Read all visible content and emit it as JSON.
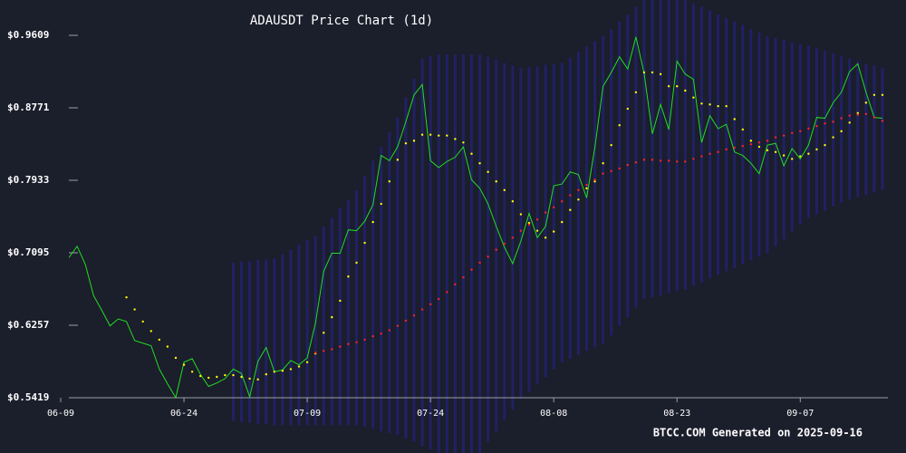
{
  "chart_data": {
    "type": "line",
    "title": "ADAUSDT Price Chart (1d)",
    "footer": "BTCC.COM Generated on 2025-09-16",
    "background": "#1b1e2b",
    "categories": [
      "06-09",
      null,
      null,
      null,
      null,
      null,
      null,
      null,
      null,
      null,
      null,
      null,
      null,
      null,
      null,
      "06-24",
      null,
      null,
      null,
      null,
      null,
      null,
      null,
      null,
      null,
      null,
      null,
      null,
      null,
      null,
      "07-09",
      null,
      null,
      null,
      null,
      null,
      null,
      null,
      null,
      null,
      null,
      null,
      null,
      null,
      null,
      "07-24",
      null,
      null,
      null,
      null,
      null,
      null,
      null,
      null,
      null,
      null,
      null,
      null,
      null,
      null,
      "08-08",
      null,
      null,
      null,
      null,
      null,
      null,
      null,
      null,
      null,
      null,
      null,
      null,
      null,
      null,
      "08-23",
      null,
      null,
      null,
      null,
      null,
      null,
      null,
      null,
      null,
      null,
      null,
      null,
      null,
      null,
      "09-07",
      null,
      null,
      null,
      null,
      null,
      null,
      null,
      null,
      null,
      null
    ],
    "ylim": [
      0.5419,
      0.9609
    ],
    "yticks": [
      {
        "value": 0.5419,
        "label": "$0.5419"
      },
      {
        "value": 0.6257,
        "label": "$0.6257"
      },
      {
        "value": 0.7095,
        "label": "$0.7095"
      },
      {
        "value": 0.7933,
        "label": "$0.7933"
      },
      {
        "value": 0.8771,
        "label": "$0.8771"
      },
      {
        "value": 0.9609,
        "label": "$0.9609"
      }
    ],
    "band": {
      "color": "#23237a",
      "upper": [
        null,
        null,
        null,
        null,
        null,
        null,
        null,
        null,
        null,
        null,
        null,
        null,
        null,
        null,
        null,
        null,
        null,
        null,
        null,
        null,
        null,
        0.698,
        0.699,
        0.7,
        0.701,
        0.702,
        0.703,
        0.708,
        0.713,
        0.719,
        0.724,
        0.729,
        0.74,
        0.75,
        0.761,
        0.771,
        0.782,
        0.799,
        0.816,
        0.832,
        0.849,
        0.866,
        0.889,
        0.911,
        0.934,
        0.937,
        0.939,
        0.939,
        0.939,
        0.939,
        0.939,
        0.939,
        0.936,
        0.933,
        0.929,
        0.926,
        0.923,
        0.924,
        0.925,
        0.927,
        0.928,
        0.929,
        0.935,
        0.942,
        0.948,
        0.954,
        0.96,
        0.968,
        0.977,
        0.985,
        0.994,
        1.002,
        1.003,
        1.005,
        1.006,
        1.007,
        1.003,
        0.998,
        0.994,
        0.99,
        0.985,
        0.981,
        0.977,
        0.973,
        0.968,
        0.964,
        0.96,
        0.958,
        0.956,
        0.953,
        0.951,
        0.949,
        0.946,
        0.943,
        0.94,
        0.937,
        0.934,
        0.931,
        0.928,
        0.926,
        0.923
      ],
      "lower": [
        null,
        null,
        null,
        null,
        null,
        null,
        null,
        null,
        null,
        null,
        null,
        null,
        null,
        null,
        null,
        null,
        null,
        null,
        null,
        null,
        null,
        0.515,
        0.514,
        0.513,
        0.512,
        0.511,
        0.51,
        0.51,
        0.51,
        0.51,
        0.51,
        0.51,
        0.51,
        0.51,
        0.51,
        0.51,
        0.51,
        0.508,
        0.506,
        0.503,
        0.501,
        0.499,
        0.495,
        0.491,
        0.486,
        0.482,
        0.478,
        0.478,
        0.478,
        0.478,
        0.478,
        0.478,
        0.491,
        0.503,
        0.516,
        0.528,
        0.541,
        0.549,
        0.558,
        0.566,
        0.575,
        0.583,
        0.587,
        0.591,
        0.596,
        0.6,
        0.604,
        0.614,
        0.625,
        0.635,
        0.646,
        0.656,
        0.658,
        0.66,
        0.663,
        0.665,
        0.667,
        0.671,
        0.675,
        0.68,
        0.684,
        0.688,
        0.692,
        0.696,
        0.701,
        0.705,
        0.709,
        0.717,
        0.725,
        0.734,
        0.742,
        0.75,
        0.754,
        0.758,
        0.763,
        0.767,
        0.771,
        0.774,
        0.776,
        0.779,
        0.782
      ]
    },
    "series": [
      {
        "style": "line",
        "color": "#22dd22",
        "values": [
          null,
          0.704,
          0.717,
          0.696,
          0.66,
          0.643,
          0.625,
          0.633,
          0.63,
          0.608,
          0.605,
          0.602,
          0.575,
          0.558,
          0.542,
          0.583,
          0.587,
          0.569,
          0.555,
          0.559,
          0.564,
          0.575,
          0.57,
          0.543,
          0.584,
          0.6,
          0.572,
          0.574,
          0.585,
          0.58,
          0.588,
          0.628,
          0.688,
          0.709,
          0.709,
          0.736,
          0.735,
          0.746,
          0.765,
          0.822,
          0.816,
          0.832,
          0.861,
          0.892,
          0.904,
          0.816,
          0.808,
          0.815,
          0.82,
          0.832,
          0.794,
          0.784,
          0.766,
          0.74,
          0.716,
          0.697,
          0.723,
          0.755,
          0.727,
          0.74,
          0.787,
          0.789,
          0.803,
          0.8,
          0.773,
          0.831,
          0.902,
          0.918,
          0.936,
          0.922,
          0.959,
          0.917,
          0.847,
          0.881,
          0.852,
          0.931,
          0.916,
          0.91,
          0.837,
          0.868,
          0.853,
          0.858,
          0.826,
          0.822,
          0.813,
          0.801,
          0.834,
          0.836,
          0.81,
          0.83,
          0.818,
          0.834,
          0.866,
          0.865,
          0.883,
          0.895,
          0.919,
          0.928,
          0.895,
          0.866,
          0.865
        ]
      },
      {
        "style": "dots",
        "color": "#ffff00",
        "values": [
          null,
          null,
          null,
          null,
          null,
          null,
          null,
          null,
          0.658,
          0.644,
          0.63,
          0.619,
          0.609,
          0.601,
          0.588,
          0.58,
          0.572,
          0.567,
          0.565,
          0.566,
          0.568,
          0.568,
          0.566,
          0.564,
          0.563,
          0.569,
          0.572,
          0.573,
          0.575,
          0.578,
          0.583,
          0.593,
          0.617,
          0.635,
          0.654,
          0.682,
          0.698,
          0.721,
          0.745,
          0.766,
          0.792,
          0.817,
          0.836,
          0.839,
          0.846,
          0.846,
          0.845,
          0.845,
          0.841,
          0.837,
          0.824,
          0.813,
          0.803,
          0.792,
          0.782,
          0.769,
          0.754,
          0.744,
          0.735,
          0.727,
          0.734,
          0.745,
          0.759,
          0.771,
          0.784,
          0.792,
          0.813,
          0.834,
          0.857,
          0.876,
          0.895,
          0.918,
          0.918,
          0.916,
          0.902,
          0.902,
          0.897,
          0.889,
          0.882,
          0.881,
          0.879,
          0.879,
          0.864,
          0.852,
          0.839,
          0.832,
          0.828,
          0.826,
          0.822,
          0.818,
          0.821,
          0.824,
          0.829,
          0.834,
          0.843,
          0.85,
          0.86,
          0.871,
          0.883,
          0.892,
          0.892
        ]
      },
      {
        "style": "dots",
        "color": "#ff2222",
        "values": [
          null,
          null,
          null,
          null,
          null,
          null,
          null,
          null,
          null,
          null,
          null,
          null,
          null,
          null,
          null,
          null,
          null,
          null,
          null,
          null,
          null,
          null,
          null,
          null,
          null,
          null,
          null,
          null,
          null,
          null,
          null,
          0.594,
          0.596,
          0.598,
          0.601,
          0.604,
          0.606,
          0.609,
          0.613,
          0.616,
          0.62,
          0.625,
          0.631,
          0.637,
          0.644,
          0.65,
          0.656,
          0.664,
          0.673,
          0.681,
          0.69,
          0.698,
          0.705,
          0.713,
          0.72,
          0.727,
          0.735,
          0.742,
          0.748,
          0.756,
          0.762,
          0.769,
          0.776,
          0.782,
          0.788,
          0.794,
          0.801,
          0.804,
          0.807,
          0.811,
          0.814,
          0.817,
          0.817,
          0.816,
          0.816,
          0.815,
          0.815,
          0.818,
          0.821,
          0.824,
          0.826,
          0.829,
          0.831,
          0.833,
          0.835,
          0.837,
          0.839,
          0.843,
          0.845,
          0.848,
          0.85,
          0.853,
          0.856,
          0.859,
          0.861,
          0.865,
          0.868,
          0.869,
          0.87,
          0.866,
          0.862
        ]
      }
    ]
  }
}
